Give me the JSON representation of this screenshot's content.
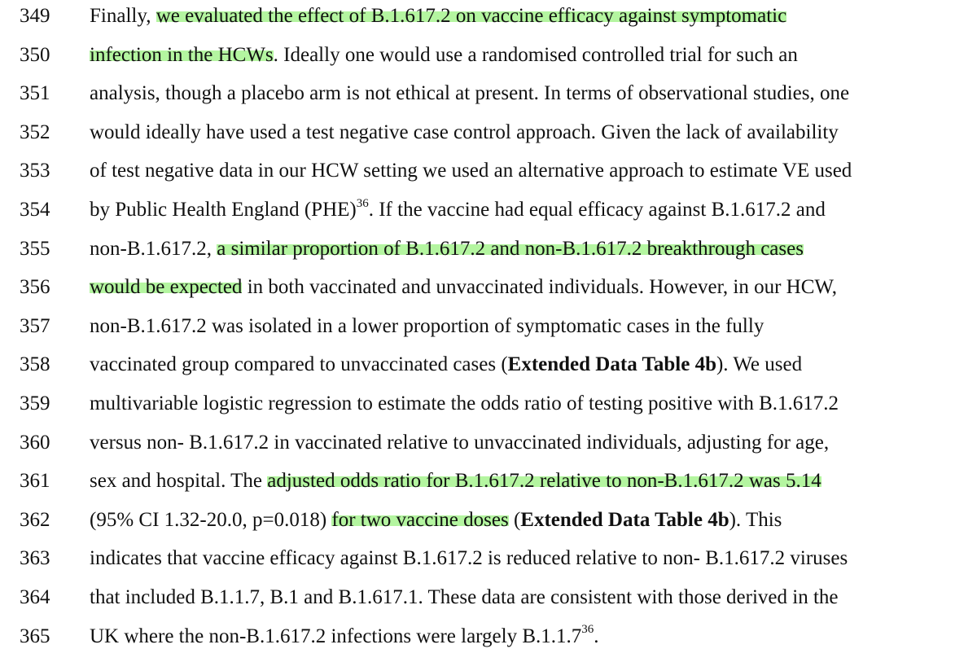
{
  "lines": [
    {
      "num": "349",
      "segments": [
        {
          "text": "Finally, "
        },
        {
          "text": "we evaluated the effect of B.1.617.2 on vaccine efficacy against symptomatic",
          "hl": true
        }
      ]
    },
    {
      "num": "350",
      "segments": [
        {
          "text": "infection in the HCWs",
          "hl": true
        },
        {
          "text": ". Ideally one would use a randomised controlled trial for such an"
        }
      ]
    },
    {
      "num": "351",
      "segments": [
        {
          "text": "analysis, though a placebo arm is not ethical at present. In terms of observational studies, one"
        }
      ]
    },
    {
      "num": "352",
      "segments": [
        {
          "text": "would ideally have used a test negative case control approach. Given the lack of availability"
        }
      ]
    },
    {
      "num": "353",
      "segments": [
        {
          "text": "of test negative data in our HCW setting we used an alternative approach to estimate VE used"
        }
      ]
    },
    {
      "num": "354",
      "segments": [
        {
          "text": "by Public Health England (PHE)"
        },
        {
          "text": "36",
          "sup": true
        },
        {
          "text": ". If the vaccine had equal efficacy against B.1.617.2 and"
        }
      ]
    },
    {
      "num": "355",
      "segments": [
        {
          "text": "non-B.1.617.2, "
        },
        {
          "text": "a similar proportion of B.1.617.2 and non-B.1.617.2 breakthrough cases",
          "hl": true
        }
      ]
    },
    {
      "num": "356",
      "segments": [
        {
          "text": "would be expected",
          "hl": true
        },
        {
          "text": " in both vaccinated and unvaccinated individuals. However, in our HCW,"
        }
      ]
    },
    {
      "num": "357",
      "segments": [
        {
          "text": "non-B.1.617.2 was isolated in a lower proportion of symptomatic cases in the fully"
        }
      ]
    },
    {
      "num": "358",
      "segments": [
        {
          "text": "vaccinated group compared to unvaccinated cases ("
        },
        {
          "text": "Extended Data Table 4b",
          "bold": true
        },
        {
          "text": "). We used"
        }
      ]
    },
    {
      "num": "359",
      "segments": [
        {
          "text": "multivariable logistic regression to estimate the odds ratio of testing positive with B.1.617.2"
        }
      ]
    },
    {
      "num": "360",
      "segments": [
        {
          "text": "versus non- B.1.617.2 in vaccinated relative to unvaccinated individuals, adjusting for age,"
        }
      ]
    },
    {
      "num": "361",
      "segments": [
        {
          "text": "sex and hospital. The "
        },
        {
          "text": "adjusted odds ratio for B.1.617.2 relative to non-B.1.617.2 was 5.14",
          "hl": true
        }
      ]
    },
    {
      "num": "362",
      "segments": [
        {
          "text": "(95% CI 1.32-20.0, p=0.018) "
        },
        {
          "text": "for two vaccine doses",
          "hl": true
        },
        {
          "text": " ("
        },
        {
          "text": "Extended Data Table 4b",
          "bold": true
        },
        {
          "text": "). This"
        }
      ]
    },
    {
      "num": "363",
      "segments": [
        {
          "text": "indicates that vaccine efficacy against B.1.617.2 is reduced relative to non- B.1.617.2 viruses"
        }
      ]
    },
    {
      "num": "364",
      "segments": [
        {
          "text": "that included B.1.1.7, B.1 and B.1.617.1. These data are consistent with those derived in the"
        }
      ]
    },
    {
      "num": "365",
      "segments": [
        {
          "text": "UK where the non-B.1.617.2 infections were largely B.1.1.7"
        },
        {
          "text": "36",
          "sup": true
        },
        {
          "text": "."
        }
      ]
    }
  ],
  "colors": {
    "highlight": "#b4f5a0",
    "text": "#111111",
    "background": "#ffffff"
  }
}
